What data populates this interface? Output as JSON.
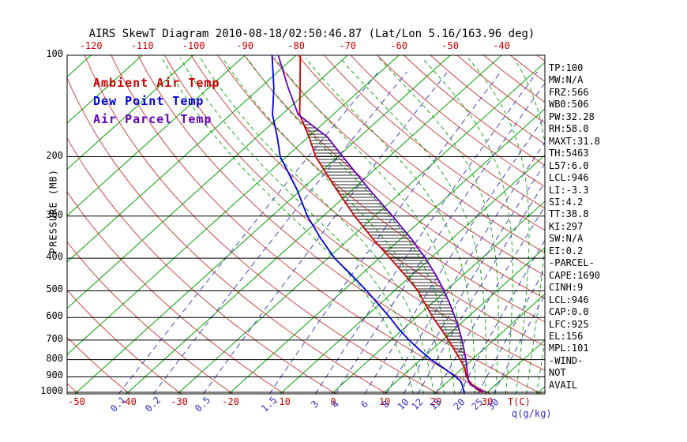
{
  "title": "AIRS SkewT Diagram 2010-08-18/02:50:46.87 (Lat/Lon 5.16/163.96 deg)",
  "colors": {
    "background": "#ffffff",
    "frame": "#000000",
    "text": "#000000",
    "isotherm": "#00a300",
    "dry_adiabat": "#cc3333",
    "moist_adiabat": "#00a300",
    "mixing": "#4646bb",
    "tick_red": "#cc0000",
    "tick_blue": "#3333cc",
    "hatch": "#111111"
  },
  "legend": [
    {
      "label": "Ambient Air Temp",
      "color": "#cc0000"
    },
    {
      "label": "Dew Point Temp",
      "color": "#0000dd"
    },
    {
      "label": "Air Parcel Temp",
      "color": "#6600bb"
    }
  ],
  "axes": {
    "pressure_label": "PRESSURE (MB)",
    "pressure_ticks": [
      100,
      200,
      300,
      400,
      500,
      600,
      700,
      800,
      900,
      1000
    ],
    "top_temp_ticks": [
      -120,
      -110,
      -100,
      -90,
      -80,
      -70,
      -60,
      -50,
      -40
    ],
    "bottom_temp_ticks": [
      -50,
      -40,
      -30,
      -20,
      -10,
      0,
      10,
      20,
      30
    ],
    "temp_unit_label": "T(C)",
    "mixing_ratio_ticks": [
      0.1,
      0.2,
      0.5,
      1.5,
      3,
      4,
      6,
      8,
      10,
      12,
      15,
      20,
      25,
      30
    ],
    "mixing_unit_label": "q(g/kg)"
  },
  "side_panel": {
    "items": [
      "TP:100",
      "MW:N/A",
      "FRZ:566",
      "WB0:506",
      "PW:32.28",
      "RH:58.0",
      "MAXT:31.8",
      "TH:5463",
      "L57:6.0",
      "LCL:946",
      "LI:-3.3",
      "SI:4.2",
      "TT:38.8",
      "KI:297",
      "SW:N/A",
      "EI:0.2",
      "-PARCEL-",
      "CAPE:1690",
      "CINH:9",
      "LCL:946",
      "CAP:0.0",
      "LFC:925",
      "EL:156",
      "MPL:101",
      "-WIND-",
      "NOT",
      "AVAIL"
    ]
  },
  "chart_data": {
    "type": "line",
    "title": "AIRS SkewT Diagram 2010-08-18/02:50:46.87 (Lat/Lon 5.16/163.96 deg)",
    "x_axis": {
      "label": "T(C)",
      "bottom_ticks_C": [
        -50,
        -40,
        -30,
        -20,
        -10,
        0,
        10,
        20,
        30
      ],
      "top_ticks_C": [
        -120,
        -110,
        -100,
        -90,
        -80,
        -70,
        -60,
        -50,
        -40
      ]
    },
    "y_axis": {
      "label": "PRESSURE (MB)",
      "scale": "log",
      "range_mb": [
        100,
        1010
      ],
      "ticks": [
        100,
        200,
        300,
        400,
        500,
        600,
        700,
        800,
        900,
        1000
      ]
    },
    "series": [
      {
        "name": "Ambient Air Temp",
        "color": "#cc0000",
        "points_p_T": [
          [
            1006,
            29.3
          ],
          [
            1000,
            29.0
          ],
          [
            975,
            27.0
          ],
          [
            950,
            25.5
          ],
          [
            925,
            24.0
          ],
          [
            900,
            22.6
          ],
          [
            850,
            20.5
          ],
          [
            800,
            17.7
          ],
          [
            750,
            14.5
          ],
          [
            700,
            11.2
          ],
          [
            650,
            7.4
          ],
          [
            600,
            3.3
          ],
          [
            550,
            -0.9
          ],
          [
            500,
            -5.4
          ],
          [
            450,
            -11.2
          ],
          [
            400,
            -17.9
          ],
          [
            350,
            -25.5
          ],
          [
            300,
            -33.9
          ],
          [
            250,
            -43.2
          ],
          [
            200,
            -54.3
          ],
          [
            175,
            -59.8
          ],
          [
            150,
            -66.5
          ],
          [
            125,
            -72.2
          ],
          [
            100,
            -79.2
          ]
        ]
      },
      {
        "name": "Dew Point Temp",
        "color": "#0000dd",
        "points_p_T": [
          [
            1006,
            25.6
          ],
          [
            1000,
            25.5
          ],
          [
            975,
            24.5
          ],
          [
            950,
            23.5
          ],
          [
            925,
            22.3
          ],
          [
            900,
            20.5
          ],
          [
            850,
            16.5
          ],
          [
            800,
            12.0
          ],
          [
            750,
            7.8
          ],
          [
            700,
            3.5
          ],
          [
            650,
            -0.8
          ],
          [
            600,
            -5.1
          ],
          [
            550,
            -10.0
          ],
          [
            500,
            -15.4
          ],
          [
            450,
            -21.6
          ],
          [
            400,
            -28.7
          ],
          [
            350,
            -35.6
          ],
          [
            300,
            -43.1
          ],
          [
            250,
            -50.9
          ],
          [
            200,
            -61.2
          ],
          [
            175,
            -66.0
          ],
          [
            150,
            -71.8
          ],
          [
            125,
            -77.3
          ],
          [
            100,
            -84.7
          ]
        ]
      },
      {
        "name": "Air Parcel Temp",
        "color": "#6600bb",
        "points_p_T": [
          [
            1000,
            29.5
          ],
          [
            975,
            27.3
          ],
          [
            950,
            25.1
          ],
          [
            946,
            24.9
          ],
          [
            925,
            23.9
          ],
          [
            900,
            22.9
          ],
          [
            850,
            20.9
          ],
          [
            800,
            18.8
          ],
          [
            750,
            16.4
          ],
          [
            700,
            13.8
          ],
          [
            650,
            10.9
          ],
          [
            600,
            7.6
          ],
          [
            550,
            3.9
          ],
          [
            500,
            -0.3
          ],
          [
            450,
            -5.2
          ],
          [
            400,
            -11.0
          ],
          [
            350,
            -18.0
          ],
          [
            300,
            -26.5
          ],
          [
            250,
            -36.8
          ],
          [
            200,
            -49.0
          ],
          [
            175,
            -56.2
          ],
          [
            150,
            -66.8
          ],
          [
            125,
            -74.5
          ],
          [
            100,
            -83.5
          ]
        ]
      }
    ],
    "hatch_between": {
      "series_a": "Air Parcel Temp",
      "series_b": "Ambient Air Temp",
      "p_range": [
        150,
        925
      ]
    },
    "background_lines": {
      "isotherms_C": {
        "min": -120,
        "max": 40,
        "step": 10,
        "color": "#00a300"
      },
      "dry_adiabats_C": {
        "min": -50,
        "max": 200,
        "step": 10,
        "color": "#cc3333"
      },
      "moist_adiabats_C": {
        "min": 16,
        "max": 40,
        "step": 2,
        "color": "#00a300"
      },
      "mixing_ratio_g_kg": [
        0.1,
        0.2,
        0.5,
        1.5,
        3,
        4,
        6,
        8,
        10,
        12,
        15,
        20,
        25,
        30
      ],
      "mixing_color": "#4646bb"
    },
    "annotations": {
      "lcl_mb": 946,
      "lfc_mb": 925,
      "el_mb": 156,
      "cape_j_kg": 1690,
      "cinh_j_kg": 9
    }
  }
}
